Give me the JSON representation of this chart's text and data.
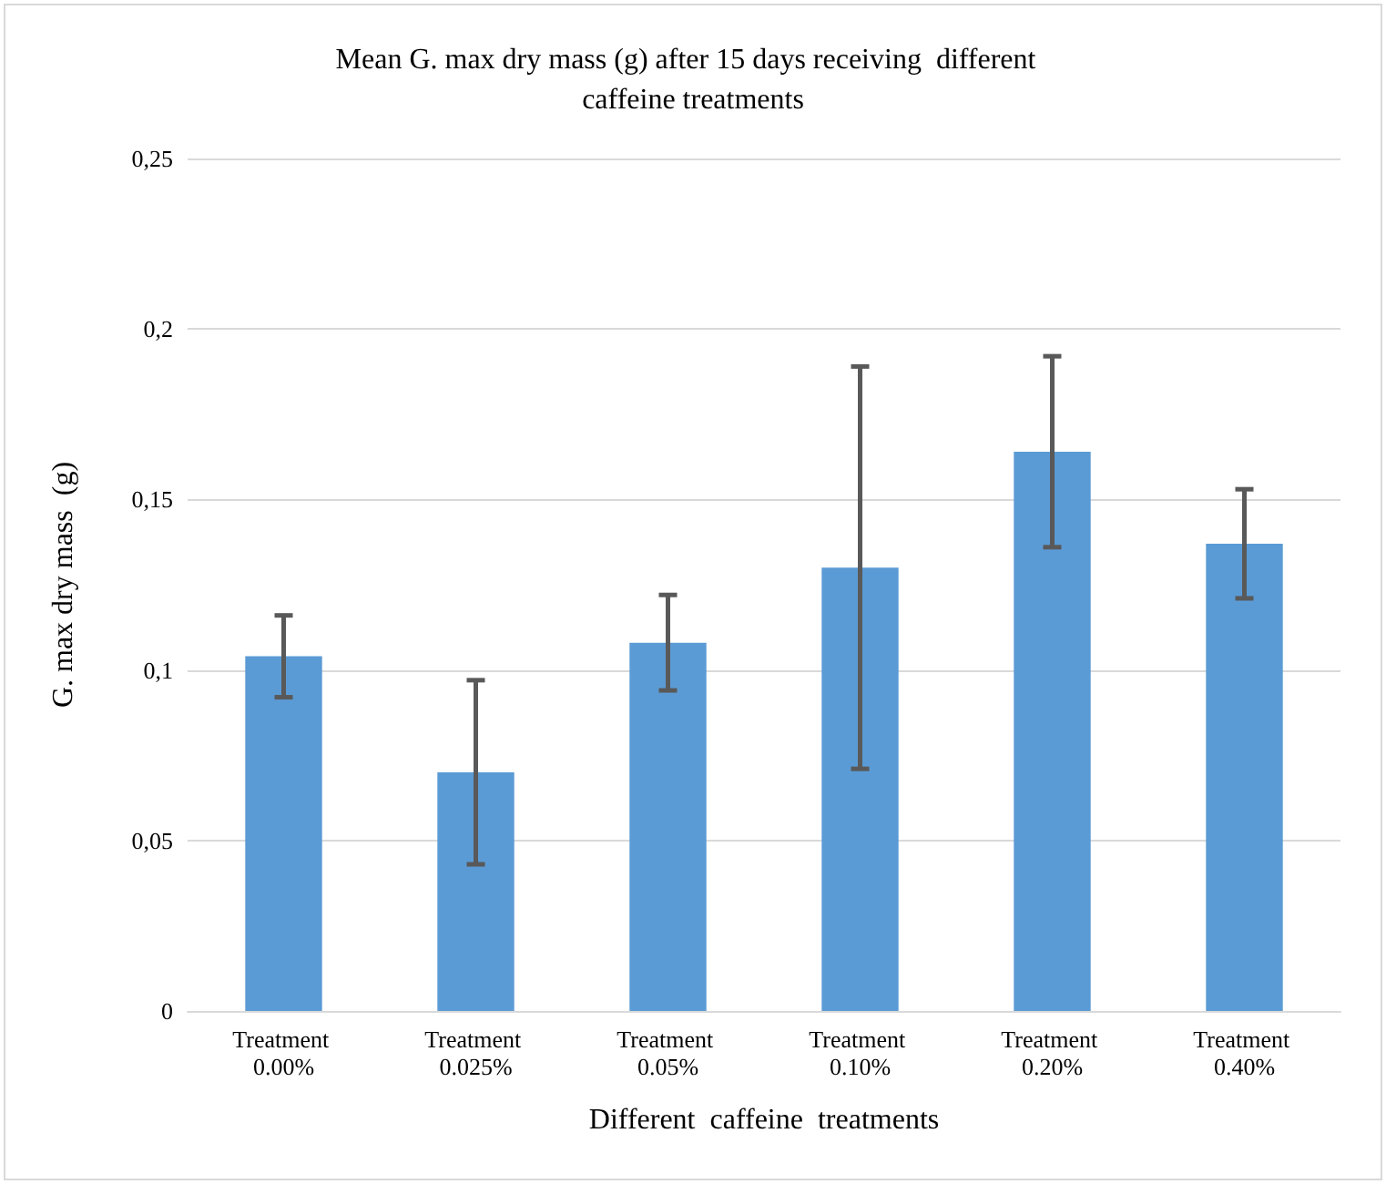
{
  "chart_data": {
    "type": "bar",
    "title": "Mean G. max dry mass (g) after 15 days receiving  different  caffeine treatments",
    "xlabel": "Different  caffeine  treatments",
    "ylabel": "G. max dry mass  (g)",
    "categories": [
      "Treatment 0.00%",
      "Treatment 0.025%",
      "Treatment 0.05%",
      "Treatment 0.10%",
      "Treatment 0.20%",
      "Treatment 0.40%"
    ],
    "values": [
      0.104,
      0.07,
      0.108,
      0.13,
      0.164,
      0.137
    ],
    "errors": [
      0.012,
      0.027,
      0.014,
      0.059,
      0.028,
      0.016
    ],
    "color": "#5b9bd5",
    "ylim": [
      0,
      0.25
    ],
    "yticks": [
      {
        "value": 0,
        "label": "0"
      },
      {
        "value": 0.05,
        "label": "0,05"
      },
      {
        "value": 0.1,
        "label": "0,1"
      },
      {
        "value": 0.15,
        "label": "0,15"
      },
      {
        "value": 0.2,
        "label": "0,2"
      },
      {
        "value": 0.25,
        "label": "0,25"
      }
    ],
    "grid": "y"
  }
}
